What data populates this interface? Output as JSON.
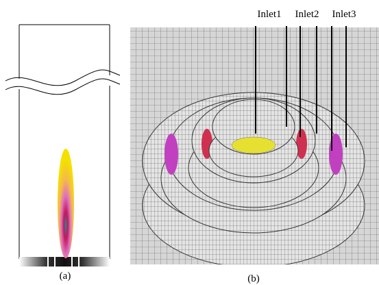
{
  "figure": {
    "inlets": [
      "Inlet1",
      "Inlet2",
      "Inlet3"
    ],
    "captions": [
      "(a)",
      "(b)"
    ]
  }
}
